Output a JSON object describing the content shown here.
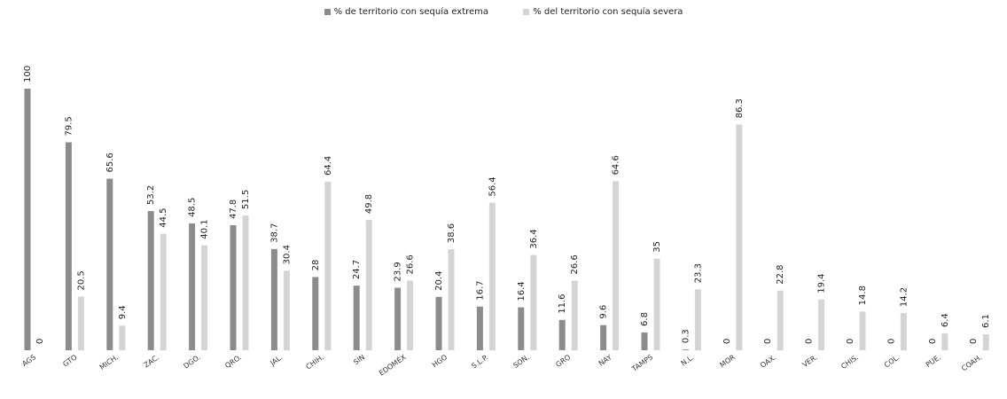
{
  "chart_data": {
    "type": "bar",
    "categories": [
      "AGS",
      "GTO",
      "MICH.",
      "ZAC.",
      "DGO.",
      "QRO.",
      "JAL.",
      "CHIH.",
      "SIN",
      "EDOMÉX",
      "HGO",
      "S.L.P.",
      "SON.",
      "GRO",
      "NAY",
      "TAMPS",
      "N.L.",
      "MOR",
      "OAX.",
      "VER.",
      "CHIS.",
      "COL.",
      "PUE.",
      "COAH."
    ],
    "series": [
      {
        "name": "% de territorio con sequía extrema",
        "color": "#8c8c8c",
        "values": [
          100,
          79.5,
          65.6,
          53.2,
          48.5,
          47.8,
          38.7,
          28,
          24.7,
          23.9,
          20.4,
          16.7,
          16.4,
          11.6,
          9.6,
          6.8,
          0.3,
          0,
          0,
          0,
          0,
          0,
          0,
          0
        ]
      },
      {
        "name": "% del territorio con sequía severa",
        "color": "#d4d4d4",
        "values": [
          0,
          20.5,
          9.4,
          44.5,
          40.1,
          51.5,
          30.4,
          64.4,
          49.8,
          26.6,
          38.6,
          56.4,
          36.4,
          26.6,
          64.6,
          35,
          23.3,
          86.3,
          22.8,
          19.4,
          14.8,
          14.2,
          6.4,
          6.1
        ]
      }
    ],
    "ylim": [
      0,
      100
    ],
    "grid": false,
    "legend_position": "top"
  }
}
